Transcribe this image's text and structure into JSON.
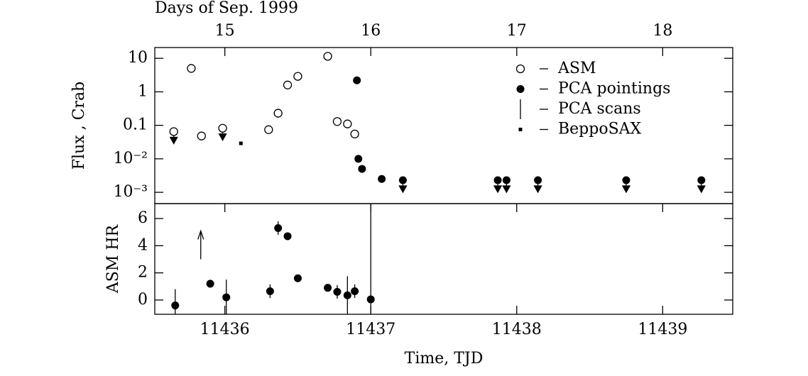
{
  "chart_data": [
    {
      "type": "scatter",
      "ylabel": "Flux , Crab",
      "x2label": "Days of Sep. 1999",
      "log_y": true,
      "xlim": [
        11435.52,
        11439.48
      ],
      "x2lim": [
        14.52,
        18.48
      ],
      "x2ticks": [
        15,
        16,
        17,
        18
      ],
      "ylim": [
        0.00046,
        21
      ],
      "yticks": [
        10,
        1,
        0.1,
        {
          "value": 0.01,
          "label": "10⁻²"
        },
        {
          "value": 0.001,
          "label": "10⁻³"
        }
      ],
      "series": [
        {
          "name": "ASM",
          "marker": "open-circle",
          "color": "#000000",
          "x": [
            11435.65,
            11435.84,
            11435.77,
            11435.985,
            11436.3,
            11436.365,
            11436.43,
            11436.5,
            11436.705,
            11436.77,
            11436.84,
            11436.89
          ],
          "values": [
            0.065,
            0.048,
            5.0,
            0.082,
            0.074,
            0.23,
            1.6,
            2.9,
            11.5,
            0.13,
            0.11,
            0.055
          ],
          "upper_limit": [
            true,
            false,
            false,
            true,
            false,
            false,
            false,
            false,
            false,
            false,
            false,
            false
          ]
        },
        {
          "name": "PCA pointings",
          "marker": "filled-circle",
          "color": "#000000",
          "x": [
            11436.905,
            11436.915,
            11436.94,
            11437.075,
            11437.22,
            11437.87,
            11437.93,
            11438.145,
            11438.75,
            11439.265
          ],
          "values": [
            2.2,
            0.01,
            0.005,
            0.0025,
            0.0023,
            0.0023,
            0.0023,
            0.0023,
            0.0023,
            0.0023
          ],
          "upper_limit": [
            false,
            false,
            false,
            false,
            true,
            true,
            true,
            true,
            true,
            true
          ]
        },
        {
          "name": "PCA scans",
          "marker": "bar",
          "color": "#000000",
          "x": [],
          "values": [],
          "upper_limit": []
        },
        {
          "name": "BeppoSAX",
          "marker": "square",
          "color": "#000000",
          "x": [
            11436.11
          ],
          "values": [
            0.029
          ],
          "upper_limit": [
            false
          ]
        }
      ]
    },
    {
      "type": "scatter",
      "ylabel": "ASM HR",
      "xlabel": "Time, TJD",
      "xlim": [
        11435.52,
        11439.48
      ],
      "xticks": [
        11436,
        11437,
        11438,
        11439
      ],
      "ylim": [
        -1.05,
        7.1
      ],
      "yticks": [
        0,
        2,
        4,
        6
      ],
      "series": [
        {
          "marker": "filled-circle",
          "color": "#000000",
          "x": [
            11435.66,
            11435.9,
            11436.01,
            11436.31,
            11436.365,
            11436.43,
            11436.5,
            11436.705,
            11436.77,
            11436.84,
            11436.89,
            11437.0
          ],
          "values": [
            -0.4,
            1.2,
            0.2,
            0.65,
            5.3,
            4.7,
            1.6,
            0.9,
            0.6,
            0.35,
            0.65,
            0.05
          ],
          "errors": [
            1.2,
            0.1,
            1.3,
            0.5,
            0.5,
            0.1,
            0.1,
            0.1,
            0.5,
            1.4,
            0.5,
            7
          ]
        },
        {
          "marker": "arrow-up",
          "color": "#000000",
          "x": [
            11435.835
          ],
          "values": [
            3.0
          ]
        }
      ]
    }
  ]
}
